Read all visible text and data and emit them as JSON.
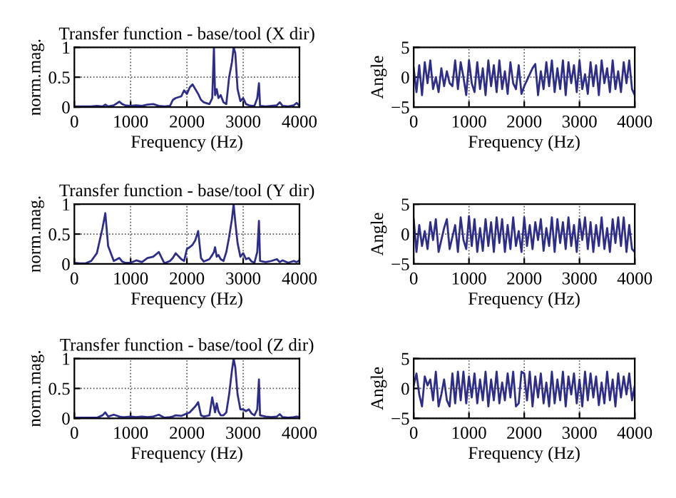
{
  "chart_data": [
    {
      "type": "line",
      "title": "Transfer function - base/tool (X dir)",
      "xlabel": "Frequency (Hz)",
      "ylabel": "norm.mag.",
      "xlim": [
        0,
        4000
      ],
      "ylim": [
        0,
        1
      ],
      "xticks": [
        0,
        1000,
        2000,
        3000,
        4000
      ],
      "yticks": [
        0,
        0.5,
        1
      ],
      "grid": true,
      "x": [
        0,
        100,
        200,
        300,
        400,
        500,
        550,
        600,
        700,
        800,
        850,
        900,
        1000,
        1100,
        1200,
        1300,
        1400,
        1500,
        1600,
        1700,
        1750,
        1800,
        1900,
        1950,
        2000,
        2050,
        2100,
        2150,
        2200,
        2250,
        2300,
        2400,
        2450,
        2480,
        2500,
        2530,
        2560,
        2600,
        2650,
        2700,
        2750,
        2800,
        2830,
        2860,
        2900,
        2950,
        3000,
        3050,
        3100,
        3150,
        3200,
        3250,
        3280,
        3300,
        3400,
        3500,
        3600,
        3650,
        3700,
        3800,
        3900,
        3950,
        4000
      ],
      "series": [
        {
          "color": "#2e2e8a",
          "values": [
            0.01,
            0.01,
            0.01,
            0.01,
            0.02,
            0.01,
            0.04,
            0.01,
            0.03,
            0.09,
            0.05,
            0.03,
            0.02,
            0.03,
            0.02,
            0.04,
            0.05,
            0.02,
            0.01,
            0.02,
            0.12,
            0.15,
            0.18,
            0.28,
            0.22,
            0.33,
            0.38,
            0.3,
            0.22,
            0.12,
            0.08,
            0.05,
            0.15,
            1.0,
            0.2,
            0.3,
            0.15,
            0.2,
            0.08,
            0.05,
            0.5,
            0.75,
            1.0,
            0.9,
            0.3,
            0.1,
            0.15,
            0.05,
            0.03,
            0.02,
            0.02,
            0.15,
            0.4,
            0.02,
            0.01,
            0.02,
            0.03,
            0.08,
            0.02,
            0.01,
            0.03,
            0.07,
            0.02
          ]
        }
      ]
    },
    {
      "type": "line",
      "xlabel": "Frequency (Hz)",
      "ylabel": "Angle",
      "xlim": [
        0,
        4000
      ],
      "ylim": [
        -5,
        5
      ],
      "xticks": [
        0,
        1000,
        2000,
        3000,
        4000
      ],
      "yticks": [
        -5,
        0,
        5
      ],
      "grid": true,
      "x": [
        0,
        50,
        100,
        150,
        200,
        250,
        300,
        350,
        400,
        450,
        500,
        550,
        600,
        650,
        700,
        750,
        800,
        850,
        900,
        950,
        1000,
        1050,
        1100,
        1150,
        1200,
        1250,
        1300,
        1350,
        1400,
        1450,
        1500,
        1550,
        1600,
        1650,
        1700,
        1750,
        1800,
        1850,
        1900,
        1950,
        2000,
        2050,
        2100,
        2150,
        2200,
        2250,
        2300,
        2350,
        2400,
        2450,
        2500,
        2550,
        2600,
        2650,
        2700,
        2750,
        2800,
        2850,
        2900,
        2950,
        3000,
        3050,
        3100,
        3150,
        3200,
        3250,
        3300,
        3350,
        3400,
        3450,
        3500,
        3550,
        3600,
        3650,
        3700,
        3750,
        3800,
        3850,
        3900,
        3950,
        4000
      ],
      "series": [
        {
          "color": "#2e2e8a",
          "values": [
            1.5,
            -2.5,
            2,
            -3,
            2.5,
            -1,
            2.8,
            -2,
            0,
            -2.5,
            1.5,
            -1.5,
            1,
            -1,
            -1.5,
            2.8,
            -2,
            2.5,
            0,
            -3,
            2.8,
            -1,
            -2.5,
            2.5,
            -2,
            1.5,
            -3,
            2.8,
            -1.5,
            2,
            -2.5,
            2.8,
            -2,
            1,
            -2.8,
            2.5,
            -1,
            -2,
            2,
            -2.8,
            -1.5,
            -0.5,
            0.5,
            1.5,
            2.2,
            -3,
            1,
            -2,
            2.5,
            -1.5,
            2.8,
            -2.5,
            1.5,
            -2,
            2.8,
            -3,
            2.5,
            -1,
            2,
            -2.5,
            2.8,
            -2,
            0.5,
            -2.8,
            2.5,
            -1.5,
            2,
            -3,
            2.8,
            -1,
            1.5,
            -2.5,
            2.8,
            -2,
            1,
            -2.5,
            2.5,
            -1,
            2.8,
            -2,
            -3
          ]
        }
      ]
    },
    {
      "type": "line",
      "title": "Transfer function - base/tool (Y dir)",
      "xlabel": "Frequency (Hz)",
      "ylabel": "norm.mag.",
      "xlim": [
        0,
        4000
      ],
      "ylim": [
        0,
        1
      ],
      "xticks": [
        0,
        1000,
        2000,
        3000,
        4000
      ],
      "yticks": [
        0,
        0.5,
        1
      ],
      "grid": true,
      "x": [
        0,
        100,
        200,
        300,
        400,
        500,
        550,
        600,
        700,
        800,
        850,
        900,
        1000,
        1100,
        1200,
        1300,
        1400,
        1500,
        1600,
        1700,
        1750,
        1800,
        1900,
        1950,
        2000,
        2050,
        2100,
        2150,
        2200,
        2250,
        2300,
        2400,
        2450,
        2480,
        2500,
        2530,
        2560,
        2600,
        2650,
        2700,
        2750,
        2800,
        2830,
        2860,
        2900,
        2950,
        3000,
        3050,
        3100,
        3150,
        3200,
        3250,
        3280,
        3300,
        3400,
        3500,
        3600,
        3650,
        3700,
        3800,
        3900,
        3950,
        4000
      ],
      "series": [
        {
          "color": "#2e2e8a",
          "values": [
            0.02,
            0.01,
            0.01,
            0.05,
            0.18,
            0.6,
            0.85,
            0.3,
            0.05,
            0.1,
            0.04,
            0.02,
            0.02,
            0.06,
            0.03,
            0.1,
            0.12,
            0.2,
            0.01,
            0.05,
            0.1,
            0.18,
            0.08,
            0.05,
            0.25,
            0.28,
            0.32,
            0.4,
            0.55,
            0.1,
            0.04,
            0.08,
            0.15,
            0.2,
            0.28,
            0.12,
            0.15,
            0.08,
            0.05,
            0.2,
            0.45,
            0.75,
            1.0,
            0.7,
            0.35,
            0.12,
            0.18,
            0.08,
            0.1,
            0.04,
            0.02,
            0.2,
            0.72,
            0.05,
            0.03,
            0.05,
            0.08,
            0.03,
            0.06,
            0.02,
            0.05,
            0.03,
            0.06
          ]
        }
      ]
    },
    {
      "type": "line",
      "xlabel": "Frequency (Hz)",
      "ylabel": "Angle",
      "xlim": [
        0,
        4000
      ],
      "ylim": [
        -5,
        5
      ],
      "xticks": [
        0,
        1000,
        2000,
        3000,
        4000
      ],
      "yticks": [
        -5,
        0,
        5
      ],
      "grid": true,
      "x": [
        0,
        50,
        100,
        150,
        200,
        250,
        300,
        350,
        400,
        450,
        500,
        550,
        600,
        650,
        700,
        750,
        800,
        850,
        900,
        950,
        1000,
        1050,
        1100,
        1150,
        1200,
        1250,
        1300,
        1350,
        1400,
        1450,
        1500,
        1550,
        1600,
        1650,
        1700,
        1750,
        1800,
        1850,
        1900,
        1950,
        2000,
        2050,
        2100,
        2150,
        2200,
        2250,
        2300,
        2350,
        2400,
        2450,
        2500,
        2550,
        2600,
        2650,
        2700,
        2750,
        2800,
        2850,
        2900,
        2950,
        3000,
        3050,
        3100,
        3150,
        3200,
        3250,
        3300,
        3350,
        3400,
        3450,
        3500,
        3550,
        3600,
        3650,
        3700,
        3750,
        3800,
        3850,
        3900,
        3950,
        4000
      ],
      "series": [
        {
          "color": "#2e2e8a",
          "values": [
            2.5,
            -3,
            1.5,
            -2,
            0.5,
            -2.5,
            2,
            -1,
            2.5,
            -3,
            -1,
            1,
            2.5,
            -2.5,
            -0.5,
            1.5,
            -3,
            2.8,
            -1,
            -2.5,
            3,
            -2,
            2.5,
            -3,
            1,
            -2.8,
            2.5,
            -2,
            2,
            -3,
            2.8,
            -1.5,
            2.5,
            -3,
            1.5,
            -2.5,
            2.8,
            -2,
            0.5,
            -3,
            2.8,
            -2,
            1.5,
            -2.5,
            2,
            -1,
            2.5,
            -2.8,
            1,
            -2,
            2.8,
            -3,
            2.5,
            -1.5,
            2,
            -2.5,
            2.8,
            -2,
            1.5,
            -3,
            2.5,
            -1,
            2.8,
            -2.5,
            2,
            -3,
            1.5,
            -2,
            2.8,
            -2.5,
            1,
            -3,
            2.5,
            -1.5,
            2.8,
            -2,
            2.8,
            -3,
            1.5,
            -2.5,
            -3
          ]
        }
      ]
    },
    {
      "type": "line",
      "title": "Transfer function - base/tool (Z dir)",
      "xlabel": "Frequency (Hz)",
      "ylabel": "norm.mag.",
      "xlim": [
        0,
        4000
      ],
      "ylim": [
        0,
        1
      ],
      "xticks": [
        0,
        1000,
        2000,
        3000,
        4000
      ],
      "yticks": [
        0,
        0.5,
        1
      ],
      "grid": true,
      "x": [
        0,
        100,
        200,
        300,
        400,
        500,
        550,
        600,
        700,
        800,
        850,
        900,
        1000,
        1100,
        1200,
        1300,
        1400,
        1500,
        1600,
        1700,
        1750,
        1800,
        1900,
        1950,
        2000,
        2050,
        2100,
        2150,
        2200,
        2250,
        2300,
        2400,
        2450,
        2480,
        2500,
        2530,
        2560,
        2600,
        2650,
        2700,
        2750,
        2800,
        2830,
        2860,
        2900,
        2950,
        3000,
        3050,
        3100,
        3150,
        3200,
        3250,
        3280,
        3300,
        3400,
        3500,
        3600,
        3650,
        3700,
        3800,
        3900,
        3950,
        4000
      ],
      "series": [
        {
          "color": "#2e2e8a",
          "values": [
            0.01,
            0.01,
            0.01,
            0.01,
            0.01,
            0.05,
            0.1,
            0.03,
            0.06,
            0.03,
            0.02,
            0.02,
            0.03,
            0.02,
            0.03,
            0.02,
            0.03,
            0.06,
            0.01,
            0.02,
            0.03,
            0.05,
            0.04,
            0.06,
            0.08,
            0.1,
            0.15,
            0.2,
            0.27,
            0.05,
            0.03,
            0.05,
            0.35,
            0.2,
            0.1,
            0.25,
            0.12,
            0.05,
            0.05,
            0.1,
            0.4,
            0.8,
            1.0,
            0.85,
            0.4,
            0.15,
            0.15,
            0.12,
            0.15,
            0.08,
            0.05,
            0.15,
            0.65,
            0.05,
            0.03,
            0.02,
            0.03,
            0.07,
            0.02,
            0.01,
            0.02,
            0.03,
            0.02
          ]
        }
      ]
    },
    {
      "type": "line",
      "xlabel": "Frequency (Hz)",
      "ylabel": "Angle",
      "xlim": [
        0,
        4000
      ],
      "ylim": [
        -5,
        5
      ],
      "xticks": [
        0,
        1000,
        2000,
        3000,
        4000
      ],
      "yticks": [
        -5,
        0,
        5
      ],
      "grid": true,
      "x": [
        0,
        50,
        100,
        150,
        200,
        250,
        300,
        350,
        400,
        450,
        500,
        550,
        600,
        650,
        700,
        750,
        800,
        850,
        900,
        950,
        1000,
        1050,
        1100,
        1150,
        1200,
        1250,
        1300,
        1350,
        1400,
        1450,
        1500,
        1550,
        1600,
        1650,
        1700,
        1750,
        1800,
        1850,
        1900,
        1950,
        2000,
        2050,
        2100,
        2150,
        2200,
        2250,
        2300,
        2350,
        2400,
        2450,
        2500,
        2550,
        2600,
        2650,
        2700,
        2750,
        2800,
        2850,
        2900,
        2950,
        3000,
        3050,
        3100,
        3150,
        3200,
        3250,
        3300,
        3350,
        3400,
        3450,
        3500,
        3550,
        3600,
        3650,
        3700,
        3750,
        3800,
        3850,
        3900,
        3950,
        4000
      ],
      "series": [
        {
          "color": "#2e2e8a",
          "values": [
            0.5,
            2.5,
            -1,
            -3,
            2,
            0.5,
            1.5,
            -2,
            2.8,
            -3,
            -1,
            1.5,
            -2,
            -3,
            2.5,
            -2.5,
            2.8,
            -2,
            2.8,
            -2.5,
            2,
            -1.5,
            2.5,
            -2.5,
            1.5,
            -2,
            2.8,
            -3,
            1.5,
            -2,
            2.8,
            -2.5,
            1,
            -2,
            2.5,
            -1.5,
            2.8,
            -3,
            -2.5,
            2.8,
            2.5,
            -2,
            2.8,
            -3,
            2,
            -1.5,
            2.5,
            -2.5,
            1,
            -3,
            2.8,
            -2.5,
            1.5,
            -2,
            2.8,
            -3,
            2,
            -1,
            2.5,
            -2.5,
            1.5,
            -3,
            2.8,
            -2,
            2.5,
            -1.5,
            2,
            -2.8,
            1,
            -2.5,
            2.8,
            -2,
            1.5,
            -3,
            2.5,
            -1.5,
            2,
            -1,
            2.5,
            -2,
            0.5
          ]
        }
      ]
    }
  ]
}
